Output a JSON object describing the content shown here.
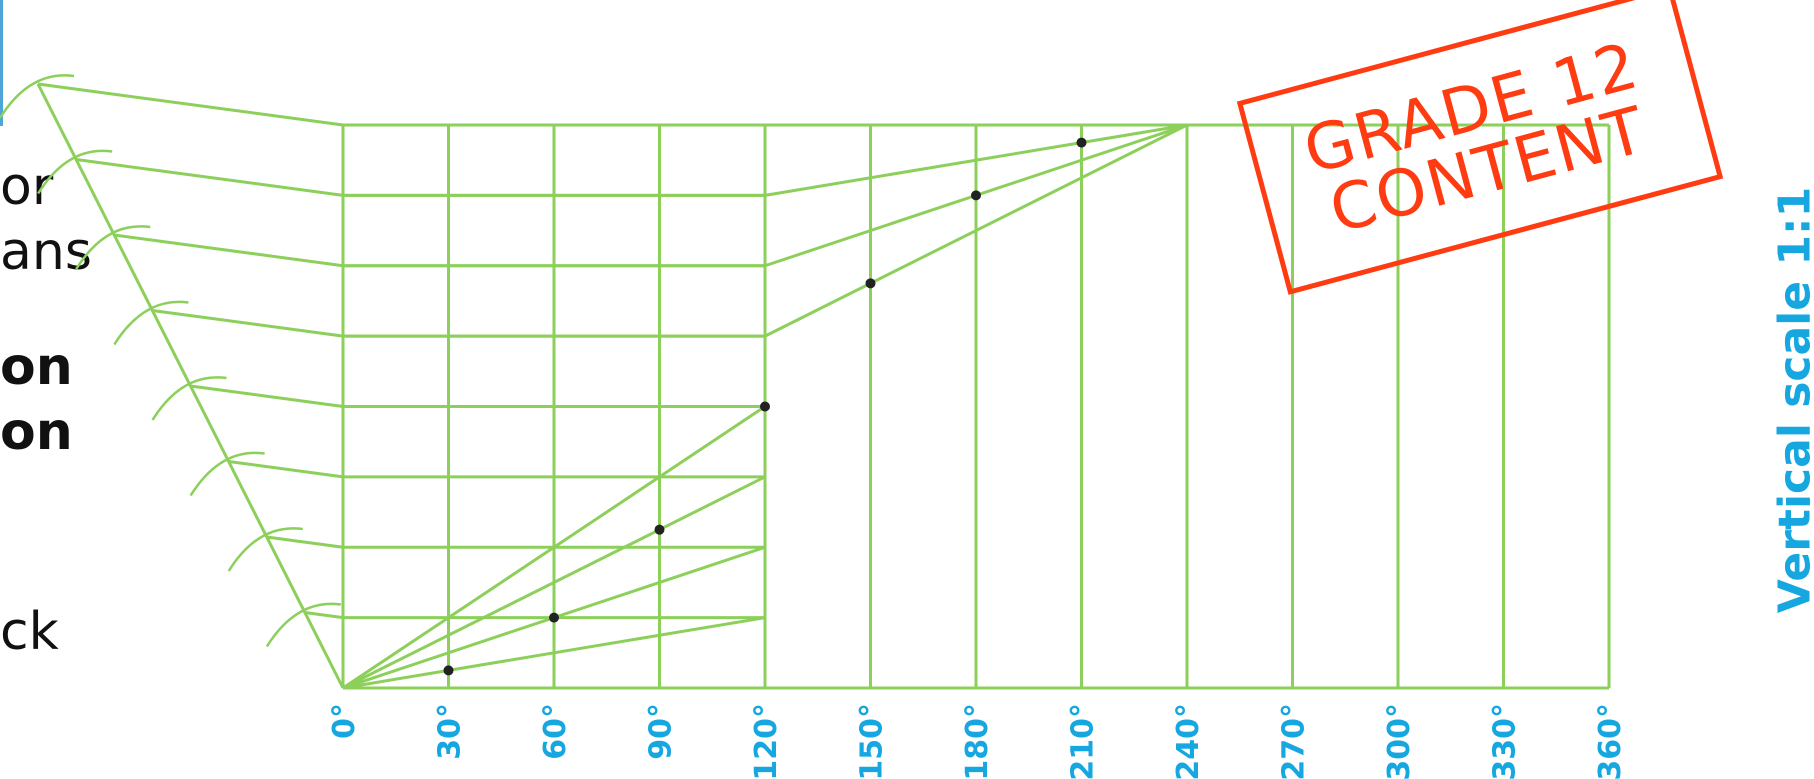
{
  "side_label": "Vertical scale 1:1",
  "stamp": {
    "line1": "GRADE 12",
    "line2": "CONTENT"
  },
  "left_text_fragments": [
    {
      "text": "or",
      "bold": false
    },
    {
      "text": "ans",
      "bold": false
    },
    {
      "text": "on",
      "bold": true
    },
    {
      "text": "on",
      "bold": true
    },
    {
      "text": "ck",
      "bold": false
    }
  ],
  "axis": {
    "tick_labels": [
      "0°",
      "30°",
      "60°",
      "90°",
      "120°",
      "150°",
      "180°",
      "210°",
      "240°",
      "270°",
      "300°",
      "330°",
      "360°"
    ],
    "angles": [
      0,
      30,
      60,
      90,
      120,
      150,
      180,
      210,
      240,
      270,
      300,
      330,
      360
    ]
  },
  "construction": {
    "divisions": 8,
    "curve_angles": [
      30,
      60,
      90,
      120,
      150,
      180,
      210
    ],
    "curve_levels": [
      1,
      2,
      3,
      5,
      6,
      7,
      8
    ]
  },
  "colors": {
    "grid": "#8ccf5a",
    "points": "#222222",
    "axis_labels": "#16a7e0",
    "side_label": "#16a7e0",
    "stamp": "#ff3b12",
    "text": "#111111"
  }
}
